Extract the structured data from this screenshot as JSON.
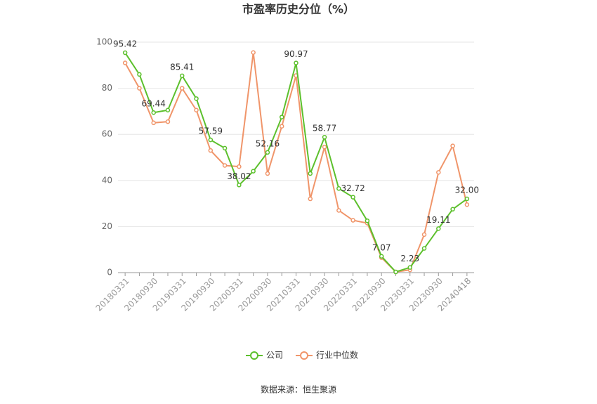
{
  "chart_data": {
    "type": "line",
    "title": "市盈率历史分位（%）",
    "source": "数据来源：恒生聚源",
    "categories": [
      "20180331",
      null,
      "20180930",
      null,
      "20190331",
      null,
      "20190930",
      null,
      "20200331",
      null,
      "20200930",
      null,
      "20210331",
      null,
      "20210930",
      null,
      "20220331",
      null,
      "20220930",
      null,
      "20230331",
      null,
      "20230930",
      null,
      "20240418"
    ],
    "series": [
      {
        "name": "公司",
        "color": "#5cc02c",
        "values": [
          95.42,
          86,
          69.44,
          70.5,
          85.41,
          75.5,
          57.59,
          54,
          38.02,
          44,
          52.16,
          67.5,
          90.97,
          43,
          58.77,
          36.5,
          32.72,
          22.5,
          7.07,
          0.3,
          2.23,
          10.5,
          19.11,
          27.5,
          32
        ],
        "value_labels": [
          "95.42",
          null,
          "69.44",
          null,
          "85.41",
          null,
          "57.59",
          null,
          "38.02",
          null,
          "52.16",
          null,
          "90.97",
          null,
          "58.77",
          null,
          "32.72",
          null,
          "7.07",
          null,
          "2.23",
          null,
          "19.11",
          null,
          "32.00"
        ]
      },
      {
        "name": "行业中位数",
        "color": "#f0956a",
        "values": [
          91,
          80,
          65,
          65.5,
          80,
          70.5,
          53,
          46.5,
          46,
          95.5,
          43,
          63.5,
          85.5,
          32,
          54.5,
          27,
          22.7,
          21.5,
          6.5,
          0.3,
          1.2,
          16.5,
          43.5,
          55,
          29.5
        ]
      }
    ],
    "ylim": [
      0,
      100
    ],
    "yticks": [
      0,
      20,
      40,
      60,
      80,
      100
    ],
    "grid": true,
    "legend": "bottom"
  }
}
